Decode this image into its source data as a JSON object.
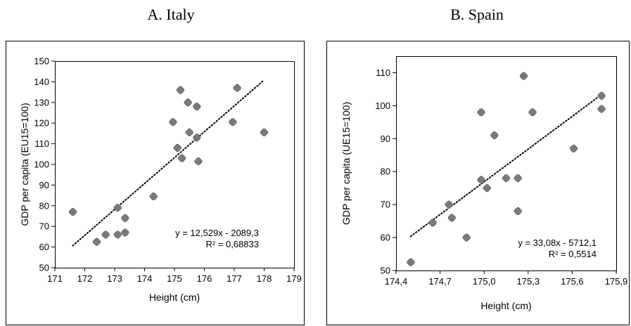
{
  "chart_data": [
    {
      "type": "scatter",
      "title": "A. Italy",
      "xlabel": "Height (cm)",
      "ylabel": "GDP per capita (EU15=100)",
      "xlim": [
        171,
        179
      ],
      "ylim": [
        50,
        150
      ],
      "x_ticks": [
        "171",
        "172",
        "173",
        "174",
        "175",
        "176",
        "177",
        "178",
        "179"
      ],
      "y_ticks": [
        "50",
        "60",
        "70",
        "80",
        "90",
        "100",
        "110",
        "120",
        "130",
        "140",
        "150"
      ],
      "points": [
        [
          171.6,
          77
        ],
        [
          172.4,
          62.5
        ],
        [
          172.7,
          66
        ],
        [
          173.1,
          79
        ],
        [
          173.1,
          66
        ],
        [
          173.35,
          74
        ],
        [
          173.35,
          67
        ],
        [
          174.3,
          84.5
        ],
        [
          174.95,
          120.5
        ],
        [
          175.1,
          108
        ],
        [
          175.2,
          136
        ],
        [
          175.25,
          103
        ],
        [
          175.45,
          130
        ],
        [
          175.5,
          115.5
        ],
        [
          175.75,
          128
        ],
        [
          175.75,
          113
        ],
        [
          175.8,
          101.5
        ],
        [
          176.95,
          120.5
        ],
        [
          177.1,
          137
        ],
        [
          178.0,
          115.5
        ]
      ],
      "trendline": {
        "slope": 12.529,
        "intercept": -2089.3,
        "x_range": [
          171.6,
          178
        ]
      },
      "equation": "y = 12,529x - 2089,3",
      "r_squared": "R² = 0,68833",
      "grid": false,
      "marker_color": "#7a7a7a"
    },
    {
      "type": "scatter",
      "title": "B. Spain",
      "xlabel": "Height (cm)",
      "ylabel": "GDP per capita (UE15=100)",
      "xlim": [
        174.4,
        175.9
      ],
      "ylim": [
        50,
        115
      ],
      "x_ticks": [
        "174,4",
        "174,7",
        "175,0",
        "175,3",
        "175,6",
        "175,9"
      ],
      "x_tick_values": [
        174.4,
        174.7,
        175.0,
        175.3,
        175.6,
        175.9
      ],
      "y_ticks": [
        "50",
        "60",
        "70",
        "80",
        "90",
        "100",
        "110"
      ],
      "y_tick_values": [
        50,
        60,
        70,
        80,
        90,
        100,
        110
      ],
      "points": [
        [
          174.5,
          52.5
        ],
        [
          174.65,
          64.5
        ],
        [
          174.76,
          70
        ],
        [
          174.78,
          66
        ],
        [
          174.88,
          60
        ],
        [
          174.98,
          98
        ],
        [
          174.98,
          77.5
        ],
        [
          175.02,
          75
        ],
        [
          175.07,
          91
        ],
        [
          175.15,
          78
        ],
        [
          175.23,
          78
        ],
        [
          175.23,
          68
        ],
        [
          175.27,
          109
        ],
        [
          175.33,
          98
        ],
        [
          175.61,
          87
        ],
        [
          175.8,
          103
        ],
        [
          175.8,
          99
        ]
      ],
      "trendline": {
        "slope": 33.08,
        "intercept": -5712.1,
        "x_range": [
          174.5,
          175.8
        ]
      },
      "equation": "y = 33,08x - 5712,1",
      "r_squared": "R² = 0,5514",
      "grid": false,
      "marker_color": "#7a7a7a"
    }
  ]
}
